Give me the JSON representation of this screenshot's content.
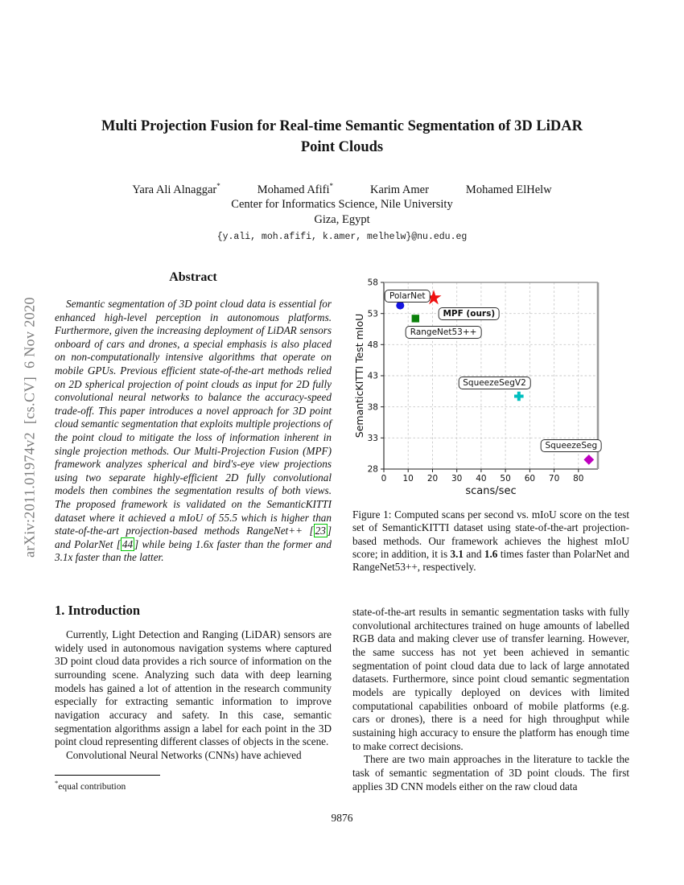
{
  "arxiv_banner": "arXiv:2011.01974v2  [cs.CV]  6 Nov 2020",
  "title": {
    "lines": [
      "Multi Projection Fusion for Real-time Semantic Segmentation of 3D LiDAR",
      "Point Clouds"
    ]
  },
  "authors": [
    {
      "name": "Yara Ali Alnaggar",
      "mark": "*"
    },
    {
      "name": "Mohamed Afifi",
      "mark": "*"
    },
    {
      "name": "Karim Amer",
      "mark": ""
    },
    {
      "name": "Mohamed ElHelw",
      "mark": ""
    }
  ],
  "affiliation": {
    "line1": "Center for Informatics Science, Nile University",
    "line2": "Giza, Egypt"
  },
  "email": "{y.ali, moh.afifi, k.amer, melhelw}@nu.edu.eg",
  "abstract": {
    "heading": "Abstract",
    "segments": [
      {
        "t": "text",
        "v": "Semantic segmentation of 3D point cloud data is essential for enhanced high-level perception in autonomous platforms. Furthermore, given the increasing deployment of LiDAR sensors onboard of cars and drones, a special emphasis is also placed on non-computationally intensive algorithms that operate on mobile GPUs. Previous efficient state-of-the-art methods relied on 2D spherical projection of point clouds as input for 2D fully convolutional neural networks to balance the accuracy-speed trade-off. This paper introduces a novel approach for 3D point cloud semantic segmentation that exploits multiple projections of the point cloud to mitigate the loss of information inherent in single projection methods. Our Multi-Projection Fusion (MPF) framework analyzes spherical and bird's-eye view projections using two separate highly-efficient 2D fully convolutional models then combines the segmentation results of both views. The proposed framework is validated on the SemanticKITTI dataset where it achieved a mIoU of 55.5 which is higher than state-of-the-art projection-based methods RangeNet++ ["
      },
      {
        "t": "cite",
        "v": "23"
      },
      {
        "t": "text",
        "v": "] and PolarNet ["
      },
      {
        "t": "cite",
        "v": "44"
      },
      {
        "t": "text",
        "v": "] while being 1.6x faster than the former and 3.1x faster than the latter."
      }
    ]
  },
  "figure": {
    "caption_segments": [
      {
        "t": "text",
        "v": "Figure 1: Computed scans per second vs. mIoU score on the test set of SemanticKITTI dataset using state-of-the-art projection-based methods. Our framework achieves the highest mIoU score; in addition, it is "
      },
      {
        "t": "bold",
        "v": "3.1"
      },
      {
        "t": "text",
        "v": " and "
      },
      {
        "t": "bold",
        "v": "1.6"
      },
      {
        "t": "text",
        "v": " times faster than PolarNet and RangeNet53++, respectively."
      }
    ]
  },
  "chart_data": {
    "type": "scatter",
    "xlabel": "scans/sec",
    "ylabel": "SemanticKITTI Test mIoU",
    "xlim": [
      0,
      88
    ],
    "ylim": [
      28,
      58
    ],
    "xticks": [
      0,
      10,
      20,
      30,
      40,
      50,
      60,
      70,
      80
    ],
    "yticks": [
      28,
      33,
      38,
      43,
      48,
      53,
      58
    ],
    "grid": true,
    "points": [
      {
        "name": "PolarNet",
        "x": 6.7,
        "y": 54.3,
        "marker": "circle",
        "color": "#1414e0",
        "label_at": [
          9.7,
          55.8
        ],
        "bold": false
      },
      {
        "name": "MPF (ours)",
        "x": 20.5,
        "y": 55.5,
        "marker": "star",
        "color": "#f01111",
        "label_at": [
          35,
          53.0
        ],
        "bold": true
      },
      {
        "name": "RangeNet53++",
        "x": 13,
        "y": 52.2,
        "marker": "square",
        "color": "#0b800b",
        "label_at": [
          24.5,
          50.0
        ],
        "bold": false
      },
      {
        "name": "SqueezeSegV2",
        "x": 55.5,
        "y": 39.7,
        "marker": "plus",
        "color": "#00bfbf",
        "label_at": [
          45.5,
          41.8
        ],
        "bold": false
      },
      {
        "name": "SqueezeSeg",
        "x": 84.3,
        "y": 29.5,
        "marker": "diamond",
        "color": "#bf00bf",
        "label_at": [
          77,
          31.7
        ],
        "bold": false
      }
    ]
  },
  "introduction": {
    "heading": "1. Introduction",
    "para1": "Currently, Light Detection and Ranging (LiDAR) sensors are widely used in autonomous navigation systems where captured 3D point cloud data provides a rich source of information on the surrounding scene. Analyzing such data with deep learning models has gained a lot of attention in the research community especially for extracting semantic information to improve navigation accuracy and safety. In this case, semantic segmentation algorithms assign a label for each point in the 3D point cloud representing different classes of objects in the scene.",
    "para2": "Convolutional Neural Networks (CNNs) have achieved"
  },
  "right_column": {
    "para1": "state-of-the-art results in semantic segmentation tasks with fully convolutional architectures trained on huge amounts of labelled RGB data and making clever use of transfer learning. However, the same success has not yet been achieved in semantic segmentation of point cloud data due to lack of large annotated datasets. Furthermore, since point cloud semantic segmentation models are typically deployed on devices with limited computational capabilities onboard of mobile platforms (e.g. cars or drones), there is a need for high throughput while sustaining high accuracy to ensure the platform has enough time to make correct decisions.",
    "para2": "There are two main approaches in the literature to tackle the task of semantic segmentation of 3D point clouds. The first applies 3D CNN models either on the raw cloud data"
  },
  "footnote": {
    "mark": "*",
    "text": "equal contribution"
  },
  "page_number": "9876"
}
